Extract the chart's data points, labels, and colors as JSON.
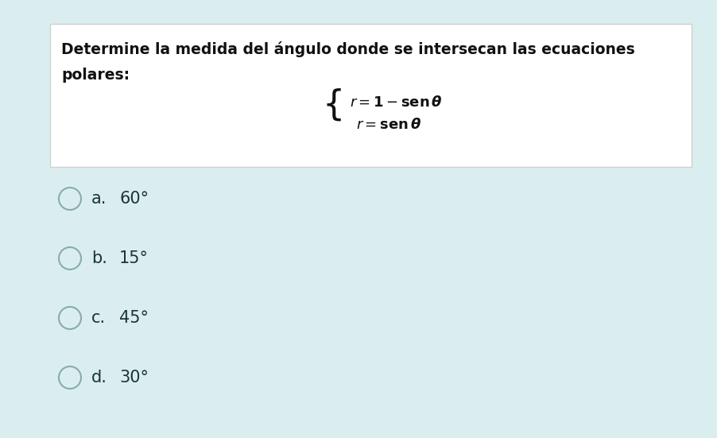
{
  "bg_color": "#daeef0",
  "question_box_color": "#ffffff",
  "question_box_border": "#d0d0d0",
  "question_text_line1": "Determine la medida del ángulo donde se intersecan las ecuaciones",
  "question_text_line2": "polares:",
  "options": [
    "a.",
    "b.",
    "c.",
    "d."
  ],
  "answers": [
    "60°",
    "15°",
    "45°",
    "30°"
  ],
  "option_color": "#1a3535",
  "circle_edge_color": "#8aabab",
  "question_bold_color": "#111111",
  "eq_color": "#111111",
  "fig_width": 9.03,
  "fig_height": 5.51,
  "dpi": 100
}
